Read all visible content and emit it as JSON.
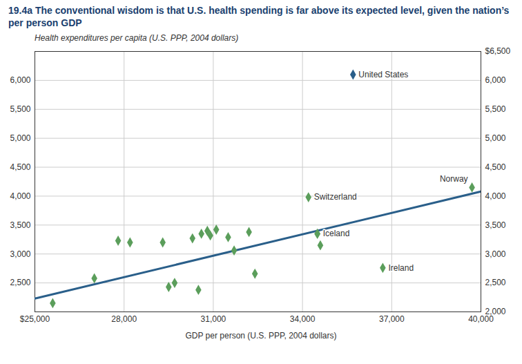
{
  "chart_data": {
    "type": "scatter",
    "title": "19.4a The conventional wisdom is that U.S. health spending is far above its expected level, given the nation’s per person GDP",
    "ylabel": "Health expenditures per capita (U.S. PPP, 2004 dollars)",
    "xlabel": "GDP per person (U.S. PPP, 2004 dollars)",
    "xlim": [
      25000,
      40000
    ],
    "ylim": [
      2000,
      6500
    ],
    "xticks": [
      {
        "value": 25000,
        "label": "$25,000"
      },
      {
        "value": 28000,
        "label": "28,000"
      },
      {
        "value": 31000,
        "label": "31,000"
      },
      {
        "value": 34000,
        "label": "34,000"
      },
      {
        "value": 37000,
        "label": "37,000"
      },
      {
        "value": 40000,
        "label": "40,000"
      }
    ],
    "yticks": [
      {
        "value": 2500,
        "label": "2,500"
      },
      {
        "value": 3000,
        "label": "3,000"
      },
      {
        "value": 3500,
        "label": "3,500"
      },
      {
        "value": 4000,
        "label": "4,000"
      },
      {
        "value": 4500,
        "label": "4,500"
      },
      {
        "value": 5000,
        "label": "5,000"
      },
      {
        "value": 5500,
        "label": "5,500"
      },
      {
        "value": 6000,
        "label": "6,000"
      }
    ],
    "y2lim": [
      2000,
      6500
    ],
    "y2ticks": [
      {
        "value": 2000,
        "label": "2,000"
      },
      {
        "value": 2500,
        "label": "2,500"
      },
      {
        "value": 3000,
        "label": "3,000"
      },
      {
        "value": 3500,
        "label": "3,500"
      },
      {
        "value": 4000,
        "label": "4,000"
      },
      {
        "value": 4500,
        "label": "4,500"
      },
      {
        "value": 5000,
        "label": "5,000"
      },
      {
        "value": 5500,
        "label": "5,500"
      },
      {
        "value": 6000,
        "label": "6,000"
      },
      {
        "value": 6500,
        "label": "$6,500"
      }
    ],
    "grid": true,
    "series": [
      {
        "color": "#5b9e5b",
        "marker": "diamond",
        "x": [
          25600,
          27000,
          27800,
          28200,
          29300,
          29500,
          29700,
          30300,
          30500,
          30600,
          30800,
          30900,
          31100,
          31500,
          31700,
          32200,
          32400,
          34500,
          34600,
          39700,
          34200,
          34500,
          36700
        ],
        "values": [
          2150,
          2580,
          3230,
          3200,
          3200,
          2430,
          2500,
          3270,
          2380,
          3350,
          3400,
          3320,
          3420,
          3290,
          3060,
          3380,
          2660,
          3350,
          3150,
          4150,
          3980,
          3350,
          2760
        ]
      },
      {
        "color": "#2a5f8a",
        "marker": "diamond",
        "x": [
          35700
        ],
        "values": [
          6100
        ]
      },
      {
        "type": "line",
        "color": "#2a5f8a",
        "x": [
          25000,
          40000
        ],
        "values": [
          2230,
          4080
        ]
      }
    ],
    "annotations": [
      {
        "text": "United States",
        "x": 35700,
        "y": 6100
      },
      {
        "text": "Norway",
        "x": 39700,
        "y": 4150
      },
      {
        "text": "Switzerland",
        "x": 34200,
        "y": 3980
      },
      {
        "text": "Iceland",
        "x": 34500,
        "y": 3350
      },
      {
        "text": "Ireland",
        "x": 36700,
        "y": 2760
      }
    ]
  }
}
